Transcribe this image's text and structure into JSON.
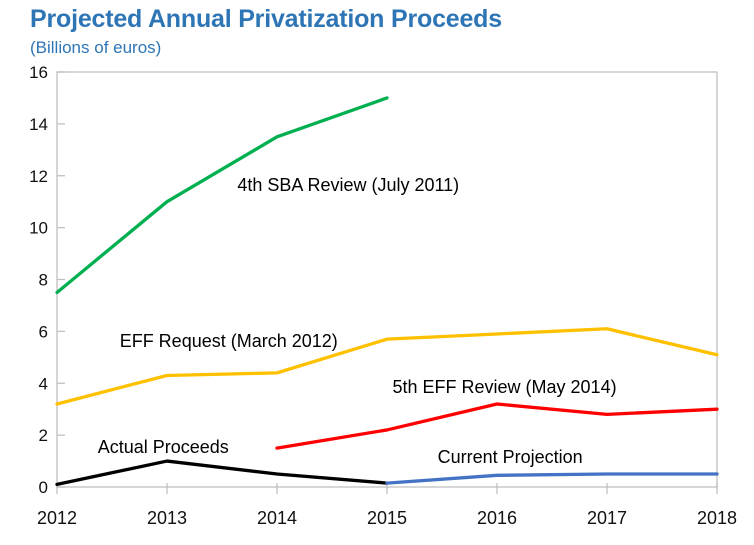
{
  "header": {
    "title": "Projected Annual Privatization Proceeds",
    "subtitle": "(Billions of euros)"
  },
  "colors": {
    "title_blue": "#2E75B6",
    "frame_gray": "#BFBFBF",
    "label_black": "#111111"
  },
  "chart_data": {
    "type": "line",
    "title": "Projected Annual Privatization Proceeds",
    "subtitle": "(Billions of euros)",
    "xlabel": "",
    "ylabel": "Billions of euros",
    "xticks": [
      2012,
      2013,
      2014,
      2015,
      2016,
      2017,
      2018
    ],
    "yticks": [
      0,
      2,
      4,
      6,
      8,
      10,
      12,
      14,
      16
    ],
    "xlim": [
      2012,
      2018
    ],
    "ylim": [
      0,
      16
    ],
    "grid": false,
    "legend_position": "none-inline-annotations",
    "series": [
      {
        "name": "4th SBA Review (July 2011)",
        "color": "#00B050",
        "x": [
          2012,
          2013,
          2014,
          2015
        ],
        "values": [
          7.5,
          11.0,
          13.5,
          15.0
        ]
      },
      {
        "name": "EFF Request (March 2012)",
        "color": "#FFC000",
        "x": [
          2012,
          2013,
          2014,
          2015,
          2016,
          2017,
          2018
        ],
        "values": [
          3.2,
          4.3,
          4.4,
          5.7,
          5.9,
          6.1,
          5.1
        ]
      },
      {
        "name": "5th EFF Review (May 2014)",
        "color": "#FF0000",
        "x": [
          2014,
          2015,
          2016,
          2017,
          2018
        ],
        "values": [
          1.5,
          2.2,
          3.2,
          2.8,
          3.0
        ]
      },
      {
        "name": "Actual Proceeds",
        "color": "#000000",
        "x": [
          2012,
          2013,
          2014,
          2015
        ],
        "values": [
          0.1,
          1.0,
          0.5,
          0.15
        ]
      },
      {
        "name": "Current Projection",
        "color": "#4472C4",
        "x": [
          2015,
          2016,
          2017,
          2018
        ],
        "values": [
          0.15,
          0.45,
          0.5,
          0.5
        ]
      }
    ],
    "annotations": [
      {
        "text": "4th SBA Review (July 2011)",
        "x": 2013.64,
        "y": 11.65
      },
      {
        "text": "EFF Request (March 2012)",
        "x": 2012.57,
        "y": 5.62
      },
      {
        "text": "5th EFF Review (May 2014)",
        "x": 2015.05,
        "y": 3.86
      },
      {
        "text": "Actual Proceeds",
        "x": 2012.37,
        "y": 1.54
      },
      {
        "text": "Current Projection",
        "x": 2015.46,
        "y": 1.16
      }
    ]
  }
}
